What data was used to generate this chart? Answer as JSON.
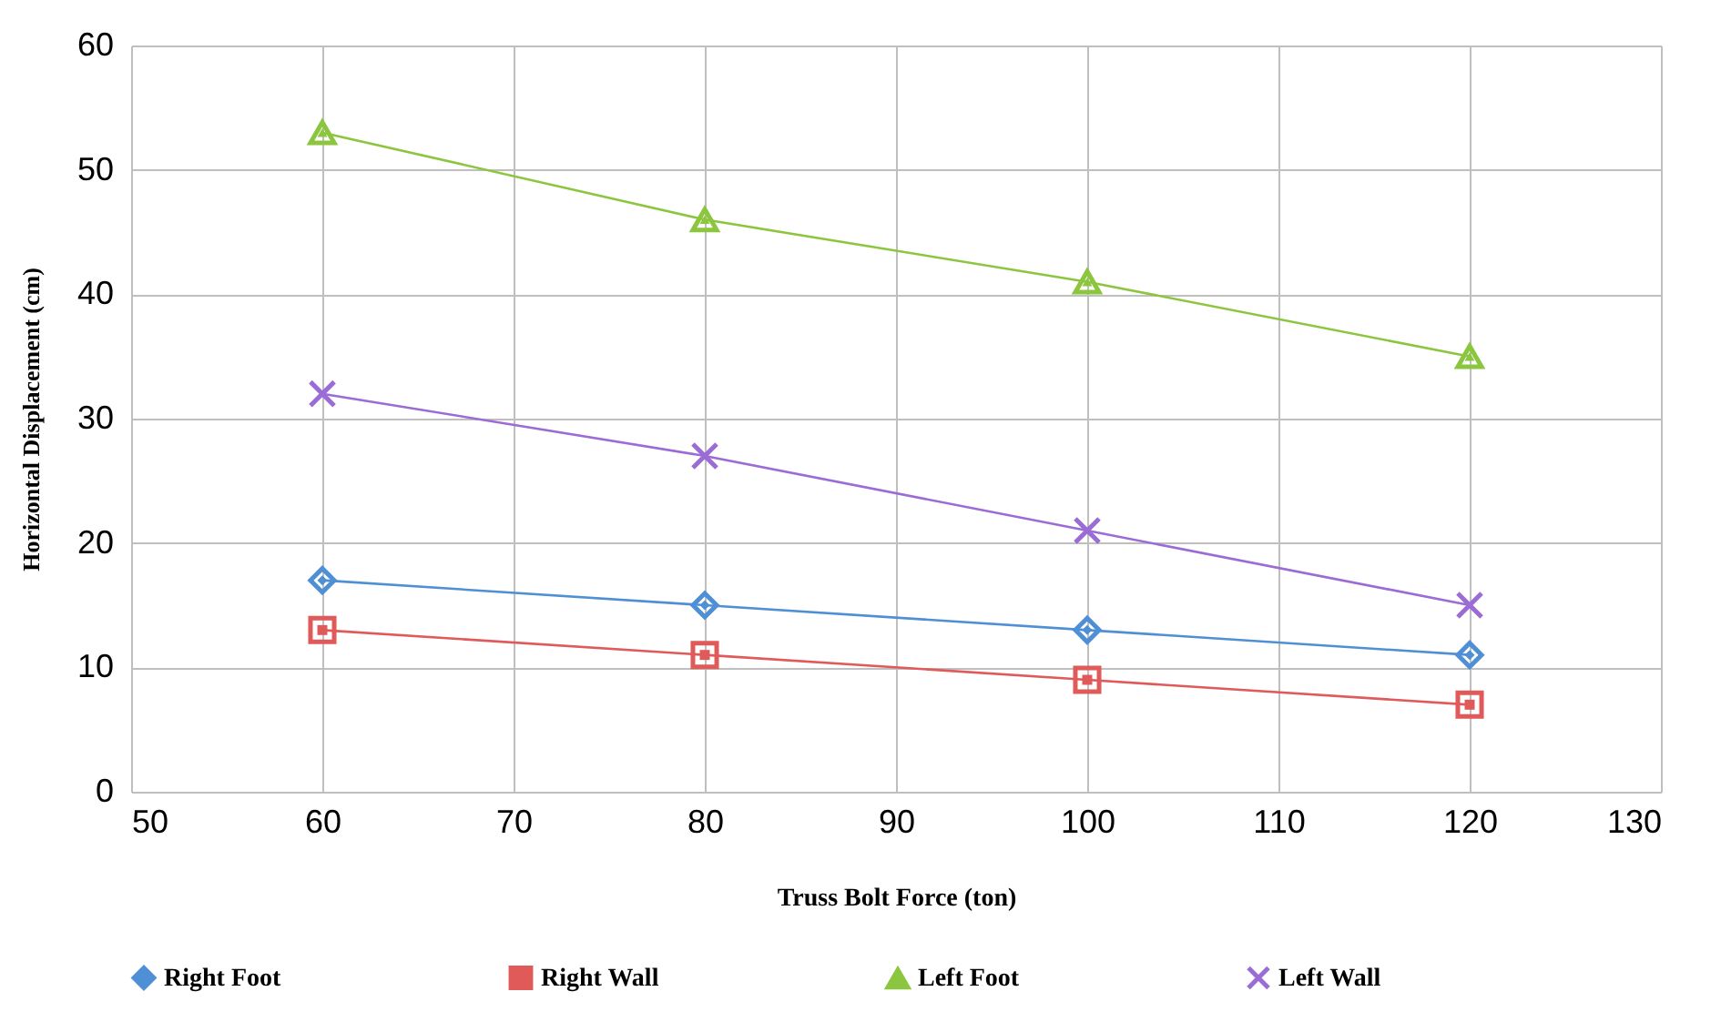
{
  "chart_data": {
    "type": "line",
    "xlabel": "Truss Bolt Force (ton)",
    "ylabel": "Horizontal Displacement (cm)",
    "x": [
      60,
      80,
      100,
      120
    ],
    "series": [
      {
        "name": "Right Foot",
        "color": "#4f8fd6",
        "marker": "diamond",
        "values": [
          17,
          15,
          13,
          11
        ]
      },
      {
        "name": "Right Wall",
        "color": "#e05a5a",
        "marker": "square",
        "values": [
          13,
          11,
          9,
          7
        ]
      },
      {
        "name": "Left Foot",
        "color": "#8cc63f",
        "marker": "triangle",
        "values": [
          53,
          46,
          41,
          35
        ]
      },
      {
        "name": "Left Wall",
        "color": "#9b6bd6",
        "marker": "cross",
        "values": [
          32,
          27,
          21,
          15
        ]
      }
    ],
    "xlim": [
      50,
      130
    ],
    "xticks": [
      50,
      60,
      70,
      80,
      90,
      100,
      110,
      120,
      130
    ],
    "ylim": [
      0,
      60
    ],
    "yticks": [
      0,
      10,
      20,
      30,
      40,
      50,
      60
    ],
    "grid": true,
    "legend": "bottom",
    "line_style": "solid"
  }
}
